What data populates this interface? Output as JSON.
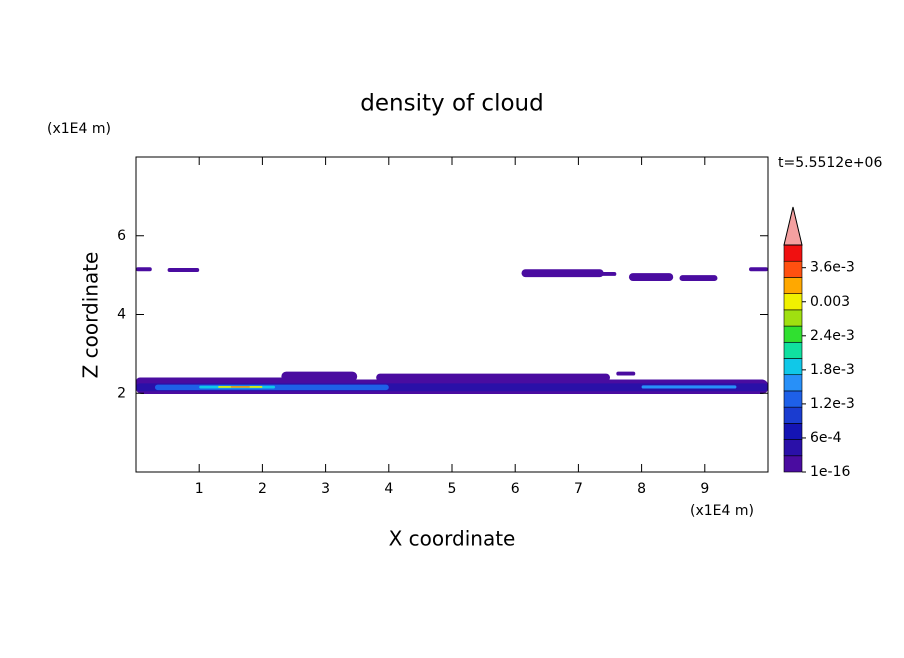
{
  "chart_data": {
    "type": "contour",
    "title": "density of cloud",
    "x_label": "X coordinate",
    "y_label": "Z coordinate",
    "x_unit": "(x1E4 m)",
    "y_unit": "(x1E4 m)",
    "time_label": "t=5.5512e+06",
    "xlim": [
      0,
      10
    ],
    "ylim": [
      0,
      8
    ],
    "xticks": [
      1,
      2,
      3,
      4,
      5,
      6,
      7,
      8,
      9
    ],
    "yticks": [
      2,
      4,
      6
    ],
    "clim": [
      0,
      0.004
    ],
    "colors": [
      "#4a0ca0",
      "#2a10a8",
      "#1414b4",
      "#1a3cd0",
      "#1e60e8",
      "#2890f8",
      "#10c8e8",
      "#10e0a0",
      "#30e030",
      "#a0e010",
      "#f0f000",
      "#ffa800",
      "#ff5010",
      "#f01010"
    ],
    "over_color": "#f4a0a0",
    "cticks": [
      {
        "value": 1e-16,
        "label": "1e-16"
      },
      {
        "value": 0.0006,
        "label": "6e-4"
      },
      {
        "value": 0.0012,
        "label": "1.2e-3"
      },
      {
        "value": 0.0018,
        "label": "1.8e-3"
      },
      {
        "value": 0.0024,
        "label": "2.4e-3"
      },
      0.003,
      {
        "value": 0.0036,
        "label": "3.6e-3"
      }
    ],
    "regions": [
      {
        "x": [
          0,
          0.25
        ],
        "z": [
          5.1,
          5.2
        ],
        "value": 0.0001
      },
      {
        "x": [
          0.5,
          1.0
        ],
        "z": [
          5.08,
          5.18
        ],
        "value": 0.0001
      },
      {
        "x": [
          6.1,
          7.4
        ],
        "z": [
          4.95,
          5.15
        ],
        "value": 0.0001
      },
      {
        "x": [
          7.3,
          7.6
        ],
        "z": [
          4.98,
          5.08
        ],
        "value": 0.0001
      },
      {
        "x": [
          7.8,
          8.5
        ],
        "z": [
          4.85,
          5.05
        ],
        "value": 0.0001
      },
      {
        "x": [
          8.6,
          9.2
        ],
        "z": [
          4.85,
          5.0
        ],
        "value": 0.0001
      },
      {
        "x": [
          9.7,
          10
        ],
        "z": [
          5.1,
          5.2
        ],
        "value": 0.0001
      },
      {
        "x": [
          2.3,
          3.5
        ],
        "z": [
          2.3,
          2.55
        ],
        "value": 0.0001
      },
      {
        "x": [
          0,
          2.5
        ],
        "z": [
          2.2,
          2.4
        ],
        "value": 0.0001
      },
      {
        "x": [
          3.8,
          7.5
        ],
        "z": [
          2.3,
          2.5
        ],
        "value": 0.0001
      },
      {
        "x": [
          7.6,
          7.9
        ],
        "z": [
          2.45,
          2.55
        ],
        "value": 0.0001
      },
      {
        "x": [
          0,
          10
        ],
        "z": [
          1.98,
          2.35
        ],
        "value": 0.0001
      },
      {
        "x": [
          0,
          10
        ],
        "z": [
          2.05,
          2.25
        ],
        "value": 0.0004
      },
      {
        "x": [
          0.3,
          4.0
        ],
        "z": [
          2.08,
          2.22
        ],
        "value": 0.0012
      },
      {
        "x": [
          8.0,
          9.5
        ],
        "z": [
          2.12,
          2.2
        ],
        "value": 0.0015
      },
      {
        "x": [
          1.0,
          2.2
        ],
        "z": [
          2.12,
          2.19
        ],
        "value": 0.0019
      },
      {
        "x": [
          1.3,
          2.0
        ],
        "z": [
          2.14,
          2.18
        ],
        "value": 0.0031
      },
      {
        "x": [
          1.5,
          1.8
        ],
        "z": [
          2.15,
          2.17
        ],
        "value": 0.0037
      }
    ]
  }
}
